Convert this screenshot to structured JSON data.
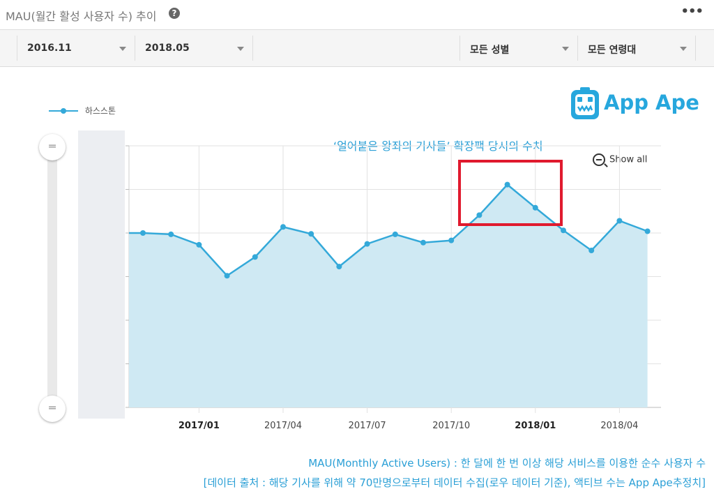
{
  "header": {
    "title": "MAU(월간 활성 사용자 수) 추이",
    "help_icon": "question-circle-icon",
    "more_icon": "more-dots-icon"
  },
  "filters": {
    "start": "2016.11",
    "end": "2018.05",
    "gender": "모든 성별",
    "age": "모든 연령대"
  },
  "legend": {
    "series_name": "하스스톤"
  },
  "logo": {
    "text": "App Ape",
    "color": "#27a7dd"
  },
  "annotation": {
    "text": "‘얼어붙은 왕좌의 기사들’ 확장팩 당시의 수치"
  },
  "zoom": {
    "label": "Show all"
  },
  "notes": {
    "line1": "MAU(Monthly Active Users) : 한 달에 한 번 이상 해당 서비스를 이용한 순수 사용자 수",
    "line2": "[데이터 출처 : 해당 기사를 위해 약 70만명으로부터 데이터 수집(로우 데이터 기준), 액티브 수는 App Ape추정치]"
  },
  "chart_data": {
    "type": "area",
    "series": [
      {
        "name": "하스스톤",
        "color": "#34a9d9",
        "x": [
          "2016-11",
          "2016-12",
          "2017-01",
          "2017-02",
          "2017-03",
          "2017-04",
          "2017-05",
          "2017-06",
          "2017-07",
          "2017-08",
          "2017-09",
          "2017-10",
          "2017-11",
          "2017-12",
          "2018-01",
          "2018-02",
          "2018-03",
          "2018-04",
          "2018-05"
        ],
        "values": [
          4.0,
          3.97,
          3.73,
          3.02,
          3.45,
          4.14,
          3.98,
          3.23,
          3.75,
          3.97,
          3.78,
          3.83,
          4.41,
          5.11,
          4.58,
          4.06,
          3.6,
          4.28,
          4.04
        ]
      }
    ],
    "x_tick_labels": [
      {
        "x": "2017-01",
        "label": "2017/01",
        "bold": true
      },
      {
        "x": "2017-04",
        "label": "2017/04",
        "bold": false
      },
      {
        "x": "2017-07",
        "label": "2017/07",
        "bold": false
      },
      {
        "x": "2017-10",
        "label": "2017/10",
        "bold": false
      },
      {
        "x": "2018-01",
        "label": "2018/01",
        "bold": true
      },
      {
        "x": "2018-04",
        "label": "2018/04",
        "bold": false
      }
    ],
    "ylim": [
      0,
      6
    ],
    "y_ticks_labels_shown": false,
    "grid": true,
    "legend_position": "top-left",
    "highlight_range": [
      "2017-11",
      "2018-01"
    ]
  }
}
